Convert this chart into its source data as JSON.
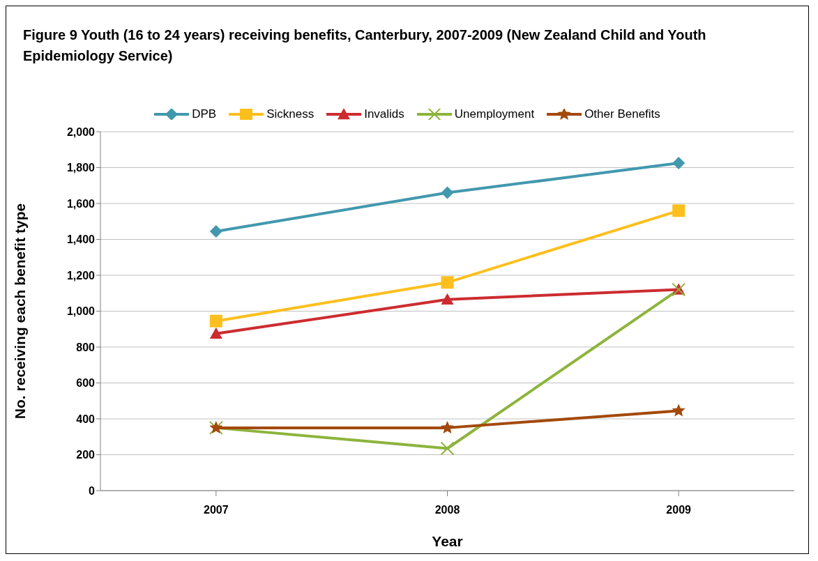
{
  "chart_data": {
    "type": "line",
    "title": "Figure 9 Youth (16 to 24 years) receiving benefits, Canterbury, 2007-2009 (New Zealand Child and Youth Epidemiology Service)",
    "xlabel": "Year",
    "ylabel": "No. receiving each benefit type",
    "categories": [
      "2007",
      "2008",
      "2009"
    ],
    "series": [
      {
        "name": "DPB",
        "color": "#4298ae",
        "marker": "diamond",
        "values": [
          1445,
          1660,
          1825
        ]
      },
      {
        "name": "Sickness",
        "color": "#fdbf1e",
        "marker": "square",
        "values": [
          945,
          1160,
          1560
        ]
      },
      {
        "name": "Invalids",
        "color": "#cc2c30",
        "marker": "triangle",
        "values": [
          875,
          1065,
          1120
        ]
      },
      {
        "name": "Unemployment",
        "color": "#8db43c",
        "marker": "cross",
        "values": [
          350,
          235,
          1120
        ]
      },
      {
        "name": "Other Benefits",
        "color": "#a3490a",
        "marker": "star",
        "values": [
          350,
          350,
          445
        ]
      }
    ],
    "ylim": [
      0,
      2000
    ],
    "yticks": [
      {
        "value": 0,
        "label": "0"
      },
      {
        "value": 200,
        "label": "200"
      },
      {
        "value": 400,
        "label": "400"
      },
      {
        "value": 600,
        "label": "600"
      },
      {
        "value": 800,
        "label": "800"
      },
      {
        "value": 1000,
        "label": "1,000"
      },
      {
        "value": 1200,
        "label": "1,200"
      },
      {
        "value": 1400,
        "label": "1,400"
      },
      {
        "value": 1600,
        "label": "1,600"
      },
      {
        "value": 1800,
        "label": "1,800"
      },
      {
        "value": 2000,
        "label": "2,000"
      }
    ],
    "grid": "y",
    "legend": "top"
  }
}
